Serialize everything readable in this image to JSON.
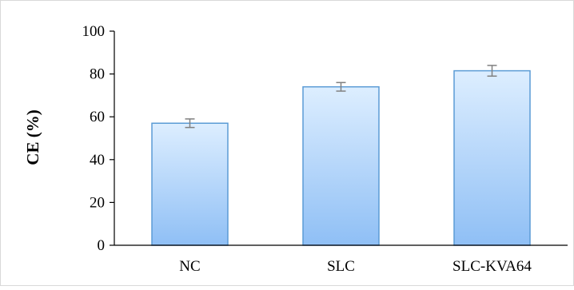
{
  "chart_data": {
    "type": "bar",
    "title": "",
    "xlabel": "",
    "ylabel": "CE (%)",
    "categories": [
      "NC",
      "SLC",
      "SLC-KVA64"
    ],
    "values": [
      57,
      74,
      81.5
    ],
    "error": [
      2,
      2,
      2.5
    ],
    "ylim": [
      0,
      100
    ],
    "yticks": [
      0,
      20,
      40,
      60,
      80,
      100
    ],
    "grid": false,
    "legend": "none",
    "colors": {
      "bar_top": "#ddeeff",
      "bar_bottom": "#8fbff5",
      "bar_stroke": "#5b9bd5",
      "error_bar": "#808080",
      "axis": "#000000",
      "frame": "#d9d9d9"
    }
  }
}
